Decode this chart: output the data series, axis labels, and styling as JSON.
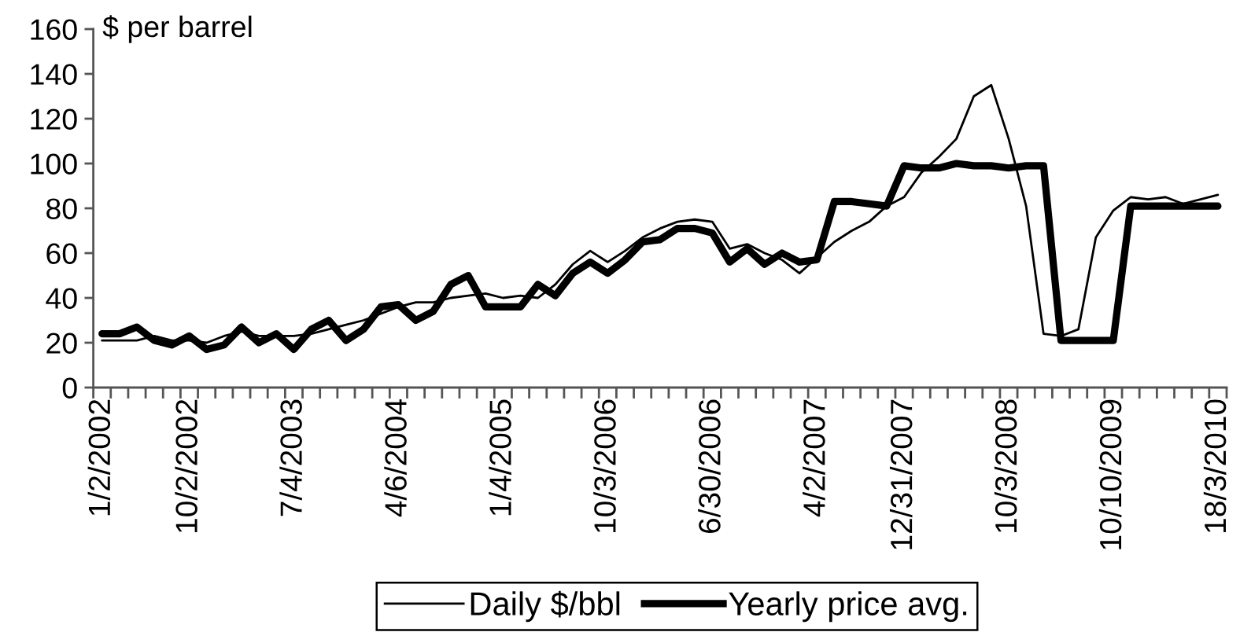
{
  "chart_data": {
    "type": "line",
    "ylabel": "$ per barrel",
    "categories": [
      "1/2/2002",
      null,
      null,
      null,
      null,
      "10/2/2002",
      null,
      null,
      null,
      null,
      null,
      "7/4/2003",
      null,
      null,
      null,
      null,
      null,
      "4/6/2004",
      null,
      null,
      null,
      null,
      null,
      "1/4/2005",
      null,
      null,
      null,
      null,
      null,
      "10/3/2006",
      null,
      null,
      null,
      null,
      null,
      "6/30/2006",
      null,
      null,
      null,
      null,
      null,
      "4/2/2007",
      null,
      null,
      null,
      null,
      "12/31/2007",
      null,
      null,
      null,
      null,
      null,
      "10/3/2008",
      null,
      null,
      null,
      null,
      null,
      "10/10/2009",
      null,
      null,
      null,
      null,
      null,
      "18/3/2010"
    ],
    "series": [
      {
        "name": "Daily $/bbl",
        "color": "#000000",
        "values": [
          21,
          21,
          21,
          23,
          21,
          21,
          20,
          23,
          25,
          23,
          23,
          23,
          24,
          26,
          28,
          30,
          33,
          36,
          38,
          38,
          40,
          41,
          42,
          40,
          41,
          40,
          46,
          55,
          61,
          56,
          61,
          67,
          71,
          74,
          75,
          74,
          62,
          64,
          60,
          57,
          51,
          58,
          65,
          70,
          74,
          81,
          85,
          96,
          103,
          111,
          130,
          135,
          111,
          81,
          24,
          23,
          26,
          67,
          79,
          85,
          84,
          85,
          82,
          84,
          86
        ]
      },
      {
        "name": "Yearly price avg.",
        "color": "#000000",
        "values": [
          24,
          24,
          27,
          21,
          19,
          23,
          17,
          19,
          27,
          20,
          24,
          17,
          26,
          30,
          21,
          26,
          36,
          37,
          30,
          34,
          46,
          50,
          36,
          36,
          36,
          46,
          41,
          51,
          56,
          51,
          57,
          65,
          66,
          71,
          71,
          69,
          56,
          62,
          55,
          60,
          56,
          57,
          83,
          83,
          82,
          81,
          99,
          98,
          98,
          100,
          99,
          99,
          98,
          99,
          99,
          21,
          21,
          21,
          21,
          81,
          81,
          81,
          81,
          81,
          81
        ]
      }
    ],
    "ylim": [
      0,
      160
    ],
    "yticks": [
      0,
      20,
      40,
      60,
      80,
      100,
      120,
      140,
      160
    ],
    "legend": "bottom"
  }
}
